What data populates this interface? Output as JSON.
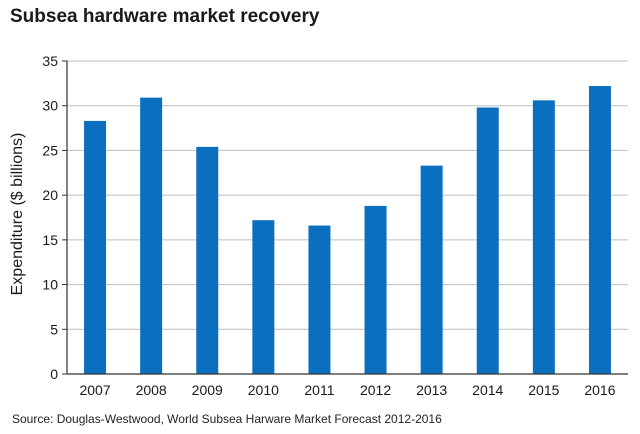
{
  "title": "Subsea hardware market recovery",
  "source": "Source: Douglas-Westwood, World Subsea Harware Market Forecast 2012-2016",
  "colors": {
    "bar": "#0a6fbf",
    "axis": "#333333",
    "grid": "#bfbfbf"
  },
  "chart_data": {
    "type": "bar",
    "title": "Subsea hardware market recovery",
    "xlabel": "",
    "ylabel": "Expenditure ($ billions)",
    "categories": [
      "2007",
      "2008",
      "2009",
      "2010",
      "2011",
      "2012",
      "2013",
      "2014",
      "2015",
      "2016"
    ],
    "values": [
      28.3,
      30.9,
      25.4,
      17.2,
      16.6,
      18.8,
      23.3,
      29.8,
      30.6,
      32.2
    ],
    "ylim": [
      0,
      35
    ],
    "yticks": [
      "0",
      "5",
      "10",
      "15",
      "20",
      "25",
      "30",
      "35"
    ],
    "grid": true,
    "legend": "none"
  }
}
